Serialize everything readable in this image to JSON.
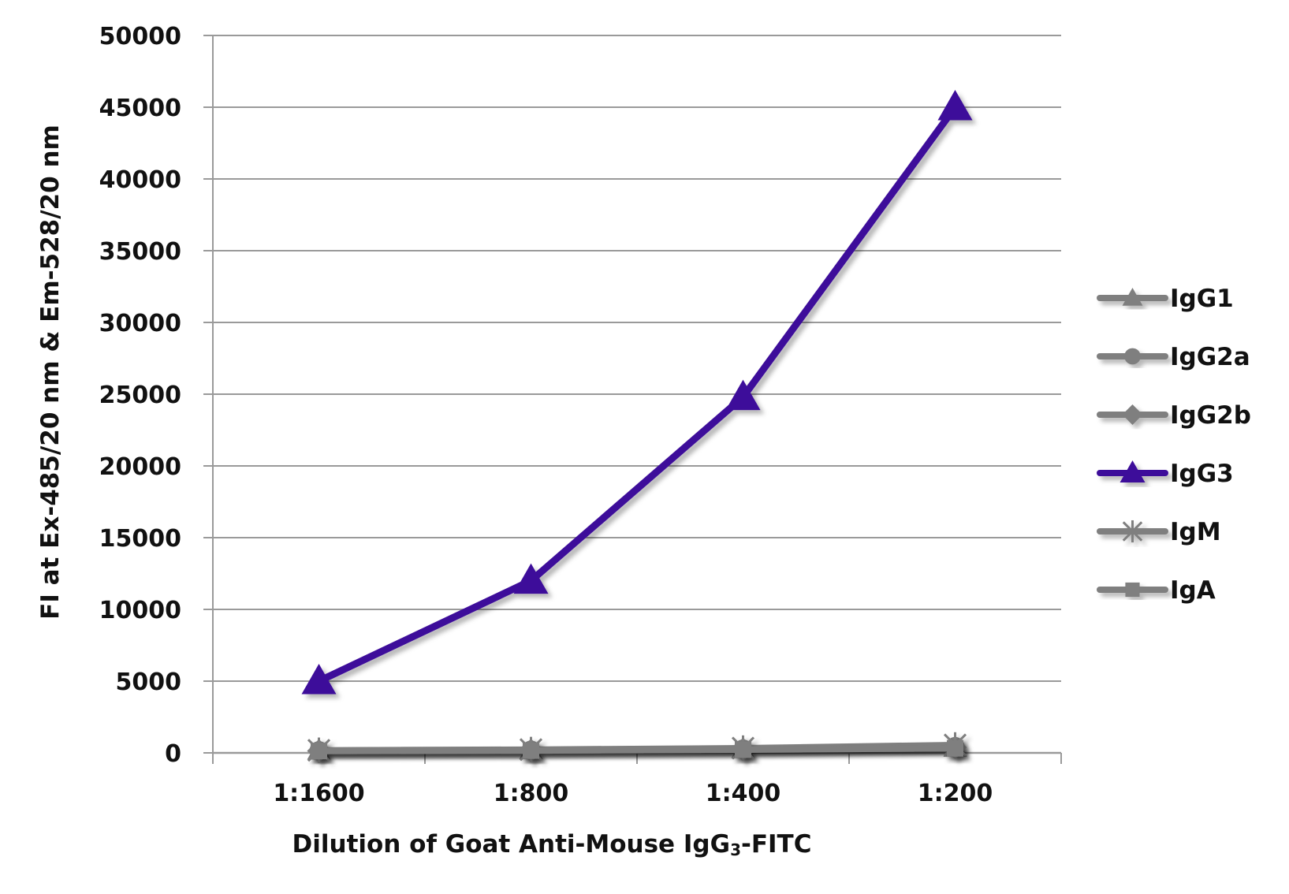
{
  "chart_data": {
    "type": "line",
    "categories": [
      "1:1600",
      "1:800",
      "1:400",
      "1:200"
    ],
    "ylim": [
      0,
      50000
    ],
    "yticks": [
      "0",
      "5000",
      "10000",
      "15000",
      "20000",
      "25000",
      "30000",
      "35000",
      "40000",
      "45000",
      "50000"
    ],
    "ylabel": "FI at Ex-485/20 nm & Em-528/20 nm",
    "xlabel": {
      "pre": "Dilution of Goat Anti-Mouse IgG",
      "sub": "3",
      "post": "-FITC"
    },
    "grid": true,
    "legend_position": "right",
    "series": [
      {
        "name": "IgG1",
        "marker": "triangle",
        "color": "#7f7f7f",
        "values": [
          150,
          180,
          250,
          350
        ]
      },
      {
        "name": "IgG2a",
        "marker": "circle",
        "color": "#7f7f7f",
        "values": [
          160,
          200,
          280,
          450
        ]
      },
      {
        "name": "IgG2b",
        "marker": "diamond",
        "color": "#7f7f7f",
        "values": [
          140,
          170,
          240,
          380
        ]
      },
      {
        "name": "IgG3",
        "marker": "triangle",
        "color": "#3e0e9a",
        "values": [
          5000,
          12000,
          24800,
          45000
        ]
      },
      {
        "name": "IgM",
        "marker": "star",
        "color": "#7f7f7f",
        "values": [
          180,
          230,
          330,
          550
        ]
      },
      {
        "name": "IgA",
        "marker": "square",
        "color": "#7f7f7f",
        "values": [
          130,
          160,
          220,
          320
        ]
      }
    ]
  }
}
